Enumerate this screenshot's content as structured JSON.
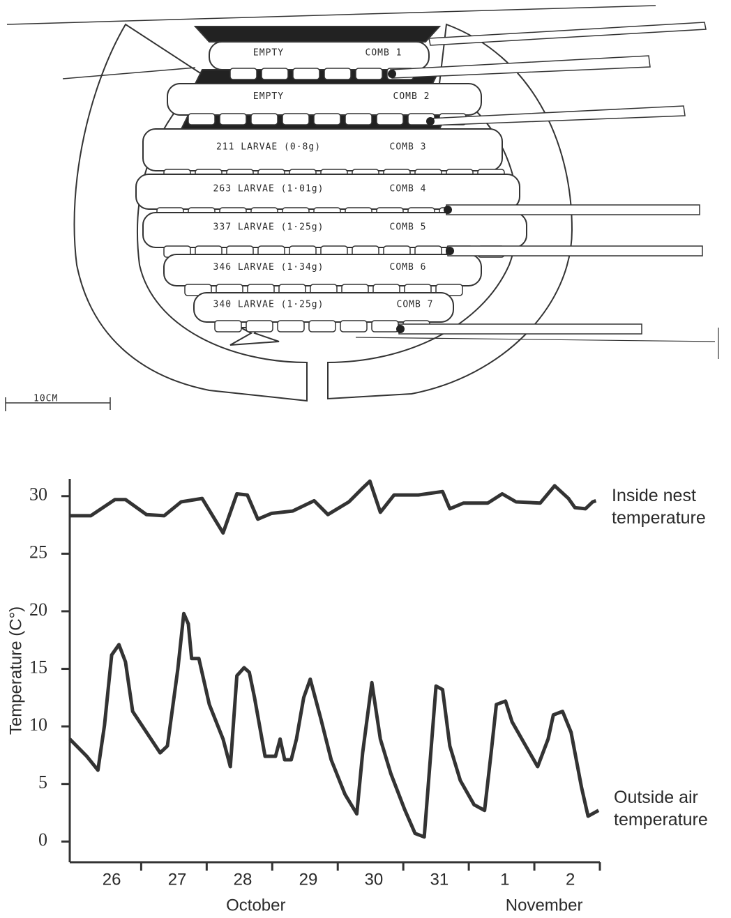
{
  "diagram": {
    "combs": [
      {
        "content": "EMPTY",
        "label": "COMB 1"
      },
      {
        "content": "EMPTY",
        "label": "COMB 2"
      },
      {
        "content": "211 LARVAE (0·8g)",
        "label": "COMB 3"
      },
      {
        "content": "263 LARVAE (1·01g)",
        "label": "COMB 4"
      },
      {
        "content": "337 LARVAE (1·25g)",
        "label": "COMB 5"
      },
      {
        "content": "346 LARVAE (1·34g)",
        "label": "COMB 6"
      },
      {
        "content": "340 LARVAE (1·25g)",
        "label": "COMB 7"
      }
    ],
    "scale_label": "10CM"
  },
  "chart_data": {
    "type": "line",
    "ylabel": "Temperature (C°)",
    "xlim": [
      25.36,
      33.45
    ],
    "ylim": [
      -1.8,
      31.5
    ],
    "yticks": [
      0,
      5,
      10,
      15,
      20,
      25,
      30
    ],
    "xticks": [
      26,
      27,
      28,
      29,
      30,
      31,
      {
        "value": 32,
        "label": "1"
      },
      {
        "value": 33,
        "label": "2"
      }
    ],
    "xminorticks": [
      26.45,
      27.45,
      28.45,
      29.45,
      30.45,
      31.45,
      32.45,
      33.45
    ],
    "month_labels": [
      {
        "text": "October",
        "x": 28.2
      },
      {
        "text": "November",
        "x": 32.6
      }
    ],
    "series": [
      {
        "name": "Inside nest temperature",
        "color": "#333333",
        "x": [
          25.36,
          25.68,
          26.05,
          26.21,
          26.53,
          26.8,
          27.06,
          27.38,
          27.7,
          27.91,
          28.07,
          28.23,
          28.44,
          28.76,
          29.09,
          29.3,
          29.62,
          29.83,
          29.94,
          30.1,
          30.31,
          30.68,
          31.05,
          31.16,
          31.37,
          31.74,
          31.96,
          32.17,
          32.54,
          32.76,
          32.97,
          33.07,
          33.23,
          33.34,
          33.39
        ],
        "values": [
          28.3,
          28.3,
          29.7,
          29.7,
          28.4,
          28.3,
          29.5,
          29.8,
          26.8,
          30.2,
          30.1,
          28.0,
          28.5,
          28.7,
          29.6,
          28.4,
          29.5,
          30.7,
          31.3,
          28.6,
          30.1,
          30.1,
          30.4,
          28.9,
          29.4,
          29.4,
          30.2,
          29.5,
          29.4,
          30.9,
          29.8,
          29.0,
          28.9,
          29.5,
          29.6
        ]
      },
      {
        "name": "Outside air temperature",
        "color": "#333333",
        "x": [
          25.36,
          25.62,
          25.79,
          25.89,
          26.0,
          26.11,
          26.21,
          26.32,
          26.53,
          26.74,
          26.85,
          27.01,
          27.1,
          27.17,
          27.22,
          27.33,
          27.49,
          27.7,
          27.81,
          27.91,
          28.02,
          28.1,
          28.18,
          28.34,
          28.5,
          28.57,
          28.64,
          28.74,
          28.82,
          28.93,
          29.03,
          29.19,
          29.35,
          29.56,
          29.74,
          29.83,
          29.97,
          30.1,
          30.26,
          30.47,
          30.63,
          30.77,
          30.87,
          30.95,
          31.05,
          31.16,
          31.32,
          31.53,
          31.69,
          31.79,
          31.87,
          32.01,
          32.11,
          32.32,
          32.5,
          32.66,
          32.74,
          32.88,
          33.01,
          33.17,
          33.27,
          33.43
        ],
        "values": [
          8.9,
          7.4,
          6.2,
          10.1,
          16.2,
          17.1,
          15.6,
          11.3,
          9.5,
          7.7,
          8.3,
          15.0,
          19.8,
          18.9,
          15.9,
          15.9,
          11.9,
          8.9,
          6.5,
          14.4,
          15.1,
          14.7,
          12.5,
          7.4,
          7.4,
          8.9,
          7.1,
          7.1,
          8.9,
          12.5,
          14.1,
          10.7,
          7.1,
          4.1,
          2.4,
          7.7,
          13.8,
          8.9,
          5.9,
          2.8,
          0.7,
          0.4,
          7.7,
          13.5,
          13.2,
          8.3,
          5.3,
          3.2,
          2.7,
          7.7,
          11.9,
          12.2,
          10.4,
          8.3,
          6.5,
          8.9,
          11.0,
          11.3,
          9.5,
          4.7,
          2.2,
          2.7
        ]
      }
    ]
  }
}
